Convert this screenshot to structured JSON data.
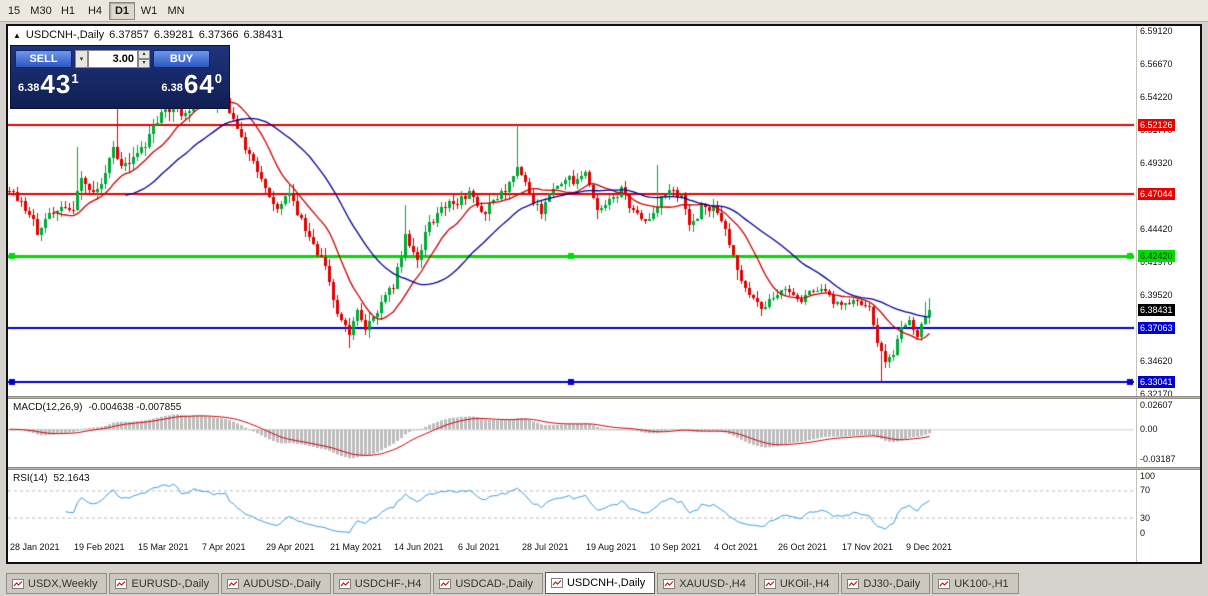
{
  "toolbar": {
    "timeframes": [
      {
        "label": "15",
        "active": false
      },
      {
        "label": "M30",
        "active": false
      },
      {
        "label": "H1",
        "active": false
      },
      {
        "label": "H4",
        "active": false
      },
      {
        "label": "D1",
        "active": true
      },
      {
        "label": "W1",
        "active": false
      },
      {
        "label": "MN",
        "active": false
      }
    ]
  },
  "chart": {
    "title": "USDCNH-,Daily",
    "ohlc": {
      "open": "6.37857",
      "high": "6.39281",
      "low": "6.37366",
      "close": "6.38431"
    },
    "trade_panel": {
      "sell_label": "SELL",
      "buy_label": "BUY",
      "lot_size": "3.00",
      "bid_small": "6.38",
      "bid_big": "43",
      "bid_sup": "1",
      "ask_small": "6.38",
      "ask_big": "64",
      "ask_sup": "0"
    }
  },
  "chart_data": {
    "type": "candlestick",
    "symbol": "USDCNH-",
    "period": "Daily",
    "last_ohlc": {
      "open": 6.37857,
      "high": 6.39281,
      "low": 6.37366,
      "close": 6.38431
    },
    "price_range": {
      "top": 6.5952,
      "bottom": 6.32
    },
    "axis_labels": [
      "6.59120",
      "6.56670",
      "6.54220",
      "6.51770",
      "6.49320",
      "6.46870",
      "6.44420",
      "6.41970",
      "6.39520",
      "6.37070",
      "6.34620",
      "6.32170"
    ],
    "hlines": [
      {
        "price": 6.52126,
        "label": "6.52126",
        "color": "#e60000",
        "text": "#ffffff",
        "width": 2,
        "handles": false
      },
      {
        "price": 6.47044,
        "label": "6.47044",
        "color": "#e60000",
        "text": "#ffffff",
        "width": 2,
        "handles": false
      },
      {
        "price": 6.4242,
        "label": "6.42420",
        "color": "#00dd00",
        "text": "#003300",
        "width": 3,
        "handles": true
      },
      {
        "price": 6.37063,
        "label": "6.37063",
        "color": "#0000d2",
        "text": "#ffffff",
        "width": 2,
        "handles": false
      },
      {
        "price": 6.33041,
        "label": "6.33041",
        "color": "#0000d2",
        "text": "#ffffff",
        "width": 2,
        "handles": true
      }
    ],
    "current_price": {
      "label": "6.38431",
      "bg": "#000000",
      "text": "#ffffff"
    },
    "up_color": "#00a83a",
    "down_color": "#e00000",
    "mas": [
      {
        "name": "ma-fast",
        "period": 12,
        "color": "#cc0000"
      },
      {
        "name": "ma-slow",
        "period": 30,
        "color": "#000096"
      }
    ],
    "macd": {
      "label": "MACD(12,26,9)",
      "values_text": "-0.004638 -0.007855",
      "axis": [
        "0.02607",
        "0.00",
        "-0.03187"
      ],
      "range": [
        0.033,
        -0.041
      ],
      "signal_color": "#cc0000",
      "hist_color": "#bdbdbd"
    },
    "rsi": {
      "label": "RSI(14)",
      "value": "52.1643",
      "axis": [
        "100",
        "70",
        "30",
        "0"
      ],
      "levels": [
        70,
        30
      ],
      "color": "#3c9bd8"
    },
    "dates": [
      "28 Jan 2021",
      "19 Feb 2021",
      "15 Mar 2021",
      "7 Apr 2021",
      "29 Apr 2021",
      "21 May 2021",
      "14 Jun 2021",
      "6 Jul 2021",
      "28 Jul 2021",
      "19 Aug 2021",
      "10 Sep 2021",
      "4 Oct 2021",
      "26 Oct 2021",
      "17 Nov 2021",
      "9 Dec 2021"
    ],
    "date_step": 16,
    "candle_count": 231,
    "seed": 77,
    "noise": 0.005,
    "wick": 0.0045,
    "close_anchors": [
      [
        0,
        6.474
      ],
      [
        4,
        6.46
      ],
      [
        7,
        6.443
      ],
      [
        10,
        6.453
      ],
      [
        13,
        6.46
      ],
      [
        16,
        6.456
      ],
      [
        18,
        6.484
      ],
      [
        20,
        6.47
      ],
      [
        23,
        6.476
      ],
      [
        26,
        6.504
      ],
      [
        29,
        6.49
      ],
      [
        32,
        6.502
      ],
      [
        35,
        6.512
      ],
      [
        38,
        6.53
      ],
      [
        41,
        6.538
      ],
      [
        44,
        6.528
      ],
      [
        46,
        6.542
      ],
      [
        48,
        6.545
      ],
      [
        51,
        6.535
      ],
      [
        54,
        6.54
      ],
      [
        57,
        6.518
      ],
      [
        60,
        6.498
      ],
      [
        64,
        6.476
      ],
      [
        67,
        6.46
      ],
      [
        70,
        6.468
      ],
      [
        73,
        6.45
      ],
      [
        76,
        6.432
      ],
      [
        79,
        6.415
      ],
      [
        82,
        6.383
      ],
      [
        85,
        6.368
      ],
      [
        87,
        6.382
      ],
      [
        89,
        6.368
      ],
      [
        92,
        6.385
      ],
      [
        96,
        6.402
      ],
      [
        99,
        6.438
      ],
      [
        102,
        6.423
      ],
      [
        105,
        6.448
      ],
      [
        108,
        6.46
      ],
      [
        112,
        6.465
      ],
      [
        115,
        6.471
      ],
      [
        118,
        6.455
      ],
      [
        121,
        6.465
      ],
      [
        124,
        6.474
      ],
      [
        127,
        6.489
      ],
      [
        130,
        6.47
      ],
      [
        133,
        6.456
      ],
      [
        136,
        6.474
      ],
      [
        139,
        6.482
      ],
      [
        142,
        6.479
      ],
      [
        144,
        6.486
      ],
      [
        147,
        6.458
      ],
      [
        150,
        6.464
      ],
      [
        153,
        6.474
      ],
      [
        156,
        6.456
      ],
      [
        159,
        6.448
      ],
      [
        162,
        6.46
      ],
      [
        165,
        6.475
      ],
      [
        168,
        6.467
      ],
      [
        170,
        6.445
      ],
      [
        173,
        6.46
      ],
      [
        176,
        6.458
      ],
      [
        179,
        6.444
      ],
      [
        182,
        6.415
      ],
      [
        185,
        6.395
      ],
      [
        188,
        6.384
      ],
      [
        191,
        6.392
      ],
      [
        194,
        6.4
      ],
      [
        197,
        6.39
      ],
      [
        200,
        6.396
      ],
      [
        203,
        6.401
      ],
      [
        206,
        6.39
      ],
      [
        209,
        6.387
      ],
      [
        212,
        6.392
      ],
      [
        215,
        6.384
      ],
      [
        217,
        6.36
      ],
      [
        219,
        6.345
      ],
      [
        221,
        6.352
      ],
      [
        223,
        6.37
      ],
      [
        225,
        6.374
      ],
      [
        227,
        6.364
      ],
      [
        229,
        6.381
      ],
      [
        230,
        6.3843
      ]
    ],
    "vol_anchors": [
      [
        0,
        1.2
      ],
      [
        20,
        1.6
      ],
      [
        40,
        1.7
      ],
      [
        60,
        1.3
      ],
      [
        85,
        1.5
      ],
      [
        100,
        1.4
      ],
      [
        127,
        1.2
      ],
      [
        150,
        1.0
      ],
      [
        170,
        1.3
      ],
      [
        185,
        1.2
      ],
      [
        205,
        0.8
      ],
      [
        214,
        0.9
      ],
      [
        218,
        1.3
      ],
      [
        230,
        0.9
      ]
    ],
    "wick_overrides": [
      {
        "i": 17,
        "high": 6.505
      },
      {
        "i": 27,
        "high": 6.556
      },
      {
        "i": 40,
        "high": 6.569
      },
      {
        "i": 46,
        "high": 6.565
      },
      {
        "i": 85,
        "low": 6.356
      },
      {
        "i": 90,
        "low": 6.363
      },
      {
        "i": 99,
        "high": 6.462
      },
      {
        "i": 127,
        "high": 6.5212
      },
      {
        "i": 147,
        "low": 6.452
      },
      {
        "i": 162,
        "high": 6.492
      },
      {
        "i": 182,
        "low": 6.406
      },
      {
        "i": 218,
        "low": 6.3305
      },
      {
        "i": 229,
        "high": 6.39
      }
    ]
  },
  "tabs": [
    {
      "label": "USDX,Weekly",
      "active": false
    },
    {
      "label": "EURUSD-,Daily",
      "active": false
    },
    {
      "label": "AUDUSD-,Daily",
      "active": false
    },
    {
      "label": "USDCHF-,H4",
      "active": false
    },
    {
      "label": "USDCAD-,Daily",
      "active": false
    },
    {
      "label": "USDCNH-,Daily",
      "active": true
    },
    {
      "label": "XAUUSD-,H4",
      "active": false
    },
    {
      "label": "UKOil-,H4",
      "active": false
    },
    {
      "label": "DJ30-,Daily",
      "active": false
    },
    {
      "label": "UK100-,H1",
      "active": false
    }
  ]
}
